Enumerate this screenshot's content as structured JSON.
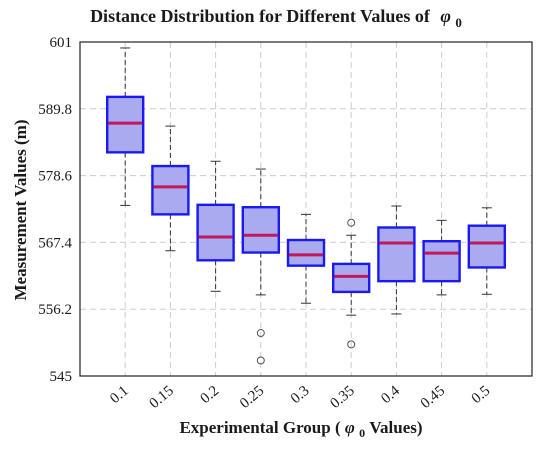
{
  "chart_data": {
    "type": "box",
    "title": "Distance Distribution for Different Values of",
    "title_symbol": "φ",
    "title_symbol_sub": "0",
    "xlabel_prefix": "Experimental Group (",
    "xlabel_symbol": "φ",
    "xlabel_symbol_sub": "0",
    "xlabel_suffix": " Values)",
    "ylabel": "Measurement Values (m)",
    "ylim": [
      545,
      601
    ],
    "yticks": [
      545,
      556.2,
      567.4,
      578.6,
      589.8,
      601
    ],
    "ytick_labels": [
      "545",
      "556.2",
      "567.4",
      "578.6",
      "589.8",
      "601"
    ],
    "grid": true,
    "colors": {
      "box_fill": "#aaaaf0",
      "box_edge": "#1a1af0",
      "median": "#c0185a",
      "whisker": "#333333",
      "grid": "#cccccc"
    },
    "categories": [
      "0.1",
      "0.15",
      "0.2",
      "0.25",
      "0.3",
      "0.35",
      "0.4",
      "0.45",
      "0.5"
    ],
    "boxes": [
      {
        "q1": 582.5,
        "median": 587.4,
        "q3": 591.8,
        "whisker_low": 573.6,
        "whisker_high": 600.0,
        "outliers": []
      },
      {
        "q1": 572.1,
        "median": 576.7,
        "q3": 580.2,
        "whisker_low": 566.0,
        "whisker_high": 586.9,
        "outliers": []
      },
      {
        "q1": 564.4,
        "median": 568.3,
        "q3": 573.7,
        "whisker_low": 559.2,
        "whisker_high": 581.0,
        "outliers": []
      },
      {
        "q1": 565.7,
        "median": 568.6,
        "q3": 573.3,
        "whisker_low": 558.6,
        "whisker_high": 579.7,
        "outliers": [
          552.2,
          547.6
        ]
      },
      {
        "q1": 563.5,
        "median": 565.3,
        "q3": 567.8,
        "whisker_low": 557.2,
        "whisker_high": 572.1,
        "outliers": []
      },
      {
        "q1": 559.1,
        "median": 561.7,
        "q3": 563.8,
        "whisker_low": 555.2,
        "whisker_high": 568.6,
        "outliers": [
          570.7,
          550.3
        ]
      },
      {
        "q1": 560.9,
        "median": 567.3,
        "q3": 569.9,
        "whisker_low": 555.4,
        "whisker_high": 573.5,
        "outliers": []
      },
      {
        "q1": 560.9,
        "median": 565.6,
        "q3": 567.6,
        "whisker_low": 558.6,
        "whisker_high": 571.1,
        "outliers": []
      },
      {
        "q1": 563.2,
        "median": 567.3,
        "q3": 570.2,
        "whisker_low": 558.7,
        "whisker_high": 573.2,
        "outliers": []
      }
    ]
  }
}
